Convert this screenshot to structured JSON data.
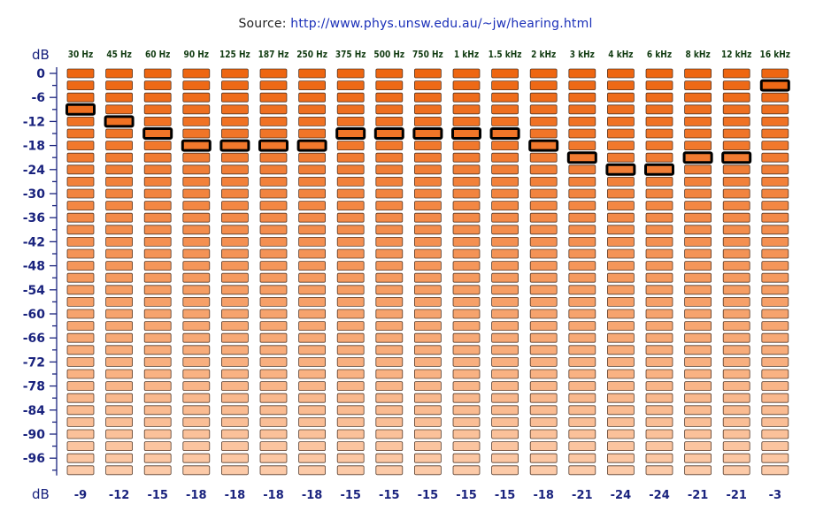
{
  "source": {
    "label": "Source:",
    "url": "http://www.phys.unsw.edu.au/~jw/hearing.html"
  },
  "chart_data": {
    "type": "equalizer-grid",
    "title": "",
    "ylabel_top": "dB",
    "ylabel_bottom": "dB",
    "ylim": [
      0,
      -99
    ],
    "step_db": 3,
    "y_ticks": [
      "0",
      "-6",
      "-12",
      "-18",
      "-24",
      "-30",
      "-36",
      "-42",
      "-48",
      "-54",
      "-60",
      "-66",
      "-72",
      "-78",
      "-84",
      "-90",
      "-96"
    ],
    "categories": [
      "30 Hz",
      "45 Hz",
      "60 Hz",
      "90 Hz",
      "125 Hz",
      "187 Hz",
      "250 Hz",
      "375 Hz",
      "500 Hz",
      "750 Hz",
      "1 kHz",
      "1.5 kHz",
      "2 kHz",
      "3 kHz",
      "4 kHz",
      "6 kHz",
      "8 kHz",
      "12 kHz",
      "16 kHz"
    ],
    "values": [
      -9,
      -12,
      -15,
      -18,
      -18,
      -18,
      -18,
      -15,
      -15,
      -15,
      -15,
      -15,
      -18,
      -21,
      -24,
      -24,
      -21,
      -21,
      -3
    ],
    "value_labels": [
      "-9",
      "-12",
      "-15",
      "-18",
      "-18",
      "-18",
      "-18",
      "-15",
      "-15",
      "-15",
      "-15",
      "-15",
      "-18",
      "-21",
      "-24",
      "-24",
      "-21",
      "-21",
      "-3"
    ],
    "colors": {
      "axis": "#1a237e",
      "header": "#123c12",
      "value": "#1a237e",
      "cell_top": "#ee6611",
      "cell_bottom": "#fccaa8",
      "cell_stroke": "#3a2010",
      "highlight": "#000000"
    }
  }
}
